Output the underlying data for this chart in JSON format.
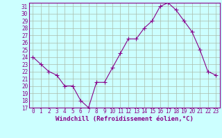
{
  "x": [
    0,
    1,
    2,
    3,
    4,
    5,
    6,
    7,
    8,
    9,
    10,
    11,
    12,
    13,
    14,
    15,
    16,
    17,
    18,
    19,
    20,
    21,
    22,
    23
  ],
  "y": [
    24.0,
    23.0,
    22.0,
    21.5,
    20.0,
    20.0,
    18.0,
    17.0,
    20.5,
    20.5,
    22.5,
    24.5,
    26.5,
    26.5,
    28.0,
    29.0,
    31.0,
    31.5,
    30.5,
    29.0,
    27.5,
    25.0,
    22.0,
    21.5
  ],
  "line_color": "#880088",
  "marker": "+",
  "marker_size": 4,
  "bg_color": "#ccffff",
  "grid_color": "#aabbaa",
  "xlabel": "Windchill (Refroidissement éolien,°C)",
  "xlim": [
    -0.5,
    23.5
  ],
  "ylim": [
    17,
    31.5
  ],
  "yticks": [
    17,
    18,
    19,
    20,
    21,
    22,
    23,
    24,
    25,
    26,
    27,
    28,
    29,
    30,
    31
  ],
  "xticks": [
    0,
    1,
    2,
    3,
    4,
    5,
    6,
    7,
    8,
    9,
    10,
    11,
    12,
    13,
    14,
    15,
    16,
    17,
    18,
    19,
    20,
    21,
    22,
    23
  ],
  "tick_color": "#880088",
  "font_size": 5.5,
  "xlabel_font_size": 6.5,
  "lw": 0.8
}
